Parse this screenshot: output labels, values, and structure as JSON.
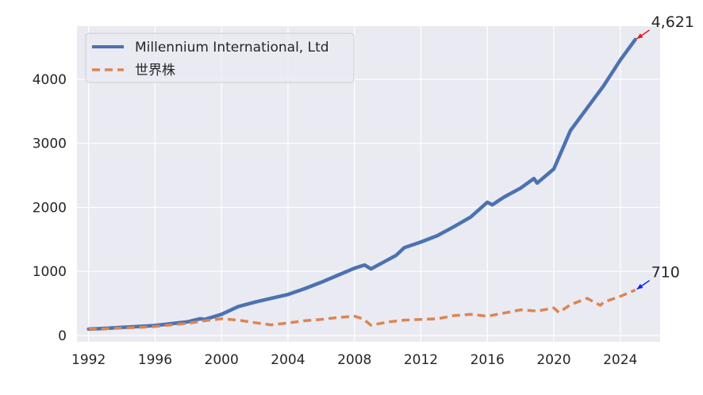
{
  "chart_data": {
    "type": "line",
    "title": "",
    "xlabel": "",
    "ylabel": "",
    "xlim": [
      1991.3,
      2026.4
    ],
    "ylim": [
      -100,
      4830
    ],
    "grid": true,
    "legend_position": "top-left",
    "x_ticks": [
      1992,
      1996,
      2000,
      2004,
      2008,
      2012,
      2016,
      2020,
      2024
    ],
    "y_ticks": [
      0,
      1000,
      2000,
      3000,
      4000
    ],
    "series": [
      {
        "name": "Millennium International, Ltd",
        "color": "#4c72b0",
        "line_style": "solid",
        "x": [
          1992.0,
          1993.0,
          1994.0,
          1995.0,
          1996.0,
          1997.0,
          1998.0,
          1998.7,
          1999.0,
          2000.0,
          2001.0,
          2002.0,
          2003.0,
          2004.0,
          2005.0,
          2006.0,
          2007.0,
          2008.0,
          2008.6,
          2009.0,
          2010.0,
          2010.5,
          2011.0,
          2012.0,
          2013.0,
          2014.0,
          2015.0,
          2016.0,
          2016.3,
          2017.0,
          2018.0,
          2018.8,
          2019.0,
          2020.0,
          2020.5,
          2021.0,
          2022.0,
          2023.0,
          2024.0,
          2024.9
        ],
        "y": [
          100,
          110,
          125,
          140,
          155,
          185,
          215,
          260,
          250,
          330,
          450,
          520,
          580,
          640,
          730,
          830,
          940,
          1050,
          1100,
          1040,
          1180,
          1250,
          1370,
          1460,
          1560,
          1700,
          1850,
          2080,
          2040,
          2160,
          2300,
          2450,
          2380,
          2600,
          2900,
          3200,
          3550,
          3900,
          4300,
          4621
        ]
      },
      {
        "name": "世界株",
        "color": "#dd8452",
        "line_style": "dashed",
        "x": [
          1992.0,
          1993.0,
          1994.0,
          1995.0,
          1996.0,
          1997.0,
          1998.0,
          1999.0,
          2000.0,
          2001.0,
          2002.0,
          2003.0,
          2004.0,
          2005.0,
          2006.0,
          2007.0,
          2008.0,
          2008.5,
          2009.0,
          2010.0,
          2011.0,
          2012.0,
          2013.0,
          2014.0,
          2015.0,
          2016.0,
          2017.0,
          2018.0,
          2019.0,
          2020.0,
          2020.3,
          2021.0,
          2022.0,
          2022.8,
          2023.0,
          2024.0,
          2024.9
        ],
        "y": [
          100,
          105,
          115,
          125,
          140,
          165,
          190,
          230,
          260,
          240,
          200,
          165,
          195,
          230,
          250,
          280,
          300,
          260,
          160,
          210,
          240,
          250,
          260,
          310,
          330,
          300,
          350,
          400,
          380,
          430,
          360,
          480,
          580,
          470,
          520,
          610,
          710
        ]
      }
    ],
    "annotations": [
      {
        "text": "4,621",
        "x": 2024.9,
        "y": 4621,
        "arrow_color": "#e31a1c"
      },
      {
        "text": "710",
        "x": 2024.9,
        "y": 710,
        "arrow_color": "#0b24fb"
      }
    ]
  }
}
